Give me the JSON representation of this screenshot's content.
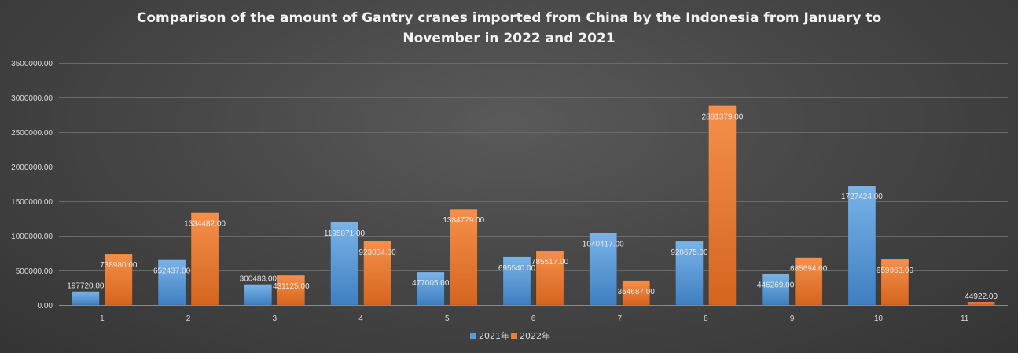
{
  "chart_data": {
    "type": "bar",
    "title_line1": "Comparison of the amount of Gantry cranes imported from China by the Indonesia from January to",
    "title_line2": "November in 2022 and 2021",
    "xlabel": "",
    "ylabel": "",
    "ylim": [
      0,
      3500000
    ],
    "y_ticks": [
      0,
      500000,
      1000000,
      1500000,
      2000000,
      2500000,
      3000000,
      3500000
    ],
    "y_tick_labels": [
      "0.00",
      "500000.00",
      "1000000.00",
      "1500000.00",
      "2000000.00",
      "2500000.00",
      "3000000.00",
      "3500000.00"
    ],
    "categories": [
      "1",
      "2",
      "3",
      "4",
      "5",
      "6",
      "7",
      "8",
      "9",
      "10",
      "11"
    ],
    "series": [
      {
        "name": "2021年",
        "color": "#5b9bd5",
        "values": [
          197720,
          652437,
          300483,
          1195871,
          477005,
          695540,
          1040417,
          920675,
          446269,
          1727424,
          null
        ],
        "labels": [
          "197720.00",
          "652437.00",
          "300483.00",
          "1195871.00",
          "477005.00",
          "695540.00",
          "1040417.00",
          "920675.00",
          "446269.00",
          "1727424.00",
          ""
        ]
      },
      {
        "name": "2022年",
        "color": "#ed7d31",
        "values": [
          738980,
          1334482,
          431125,
          923004,
          1384779,
          785517,
          354687,
          2881379,
          685694,
          659963,
          44922
        ],
        "labels": [
          "738980.00",
          "1334482.00",
          "431125.00",
          "923004.00",
          "1384779.00",
          "785517.00",
          "354687.00",
          "2881379.00",
          "685694.00",
          "659963.00",
          "44922.00"
        ]
      }
    ],
    "grid": true,
    "legend_position": "bottom"
  }
}
